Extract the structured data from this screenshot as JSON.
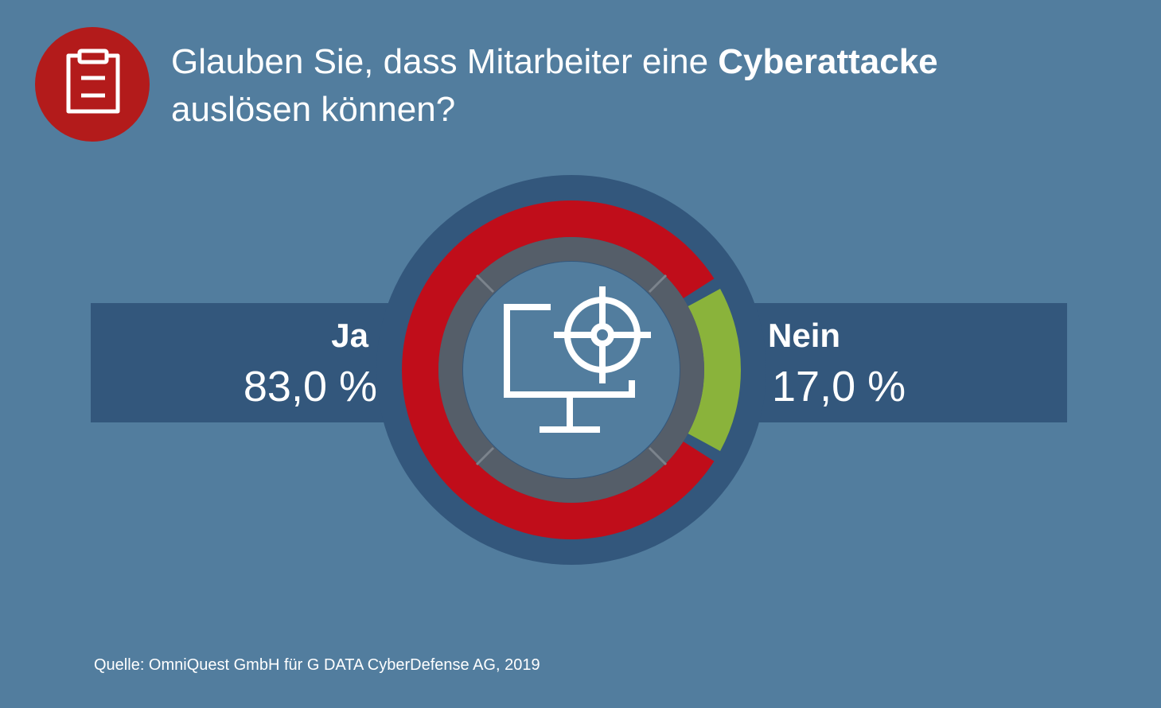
{
  "title": {
    "part1": "Glauben Sie, dass Mitarbeiter eine ",
    "highlight": "Cyberattacke",
    "line2": "auslösen können?"
  },
  "icons": {
    "header": "clipboard-icon",
    "center": "monitor-crosshair-icon"
  },
  "colors": {
    "background": "#527d9e",
    "band": "#33577c",
    "ja": "#c00d1a",
    "nein": "#8ab33b",
    "inner_ring": "#555e69",
    "icon_circle": "#b31b1b"
  },
  "chart_data": {
    "type": "pie",
    "style": "donut",
    "title": "Glauben Sie, dass Mitarbeiter eine Cyberattacke auslösen können?",
    "categories": [
      "Ja",
      "Nein"
    ],
    "values": [
      83.0,
      17.0
    ],
    "value_labels": [
      "83,0 %",
      "17,0 %"
    ],
    "unit": "%",
    "legend": "none"
  },
  "source": "Quelle: OmniQuest GmbH für G DATA CyberDefense AG, 2019"
}
